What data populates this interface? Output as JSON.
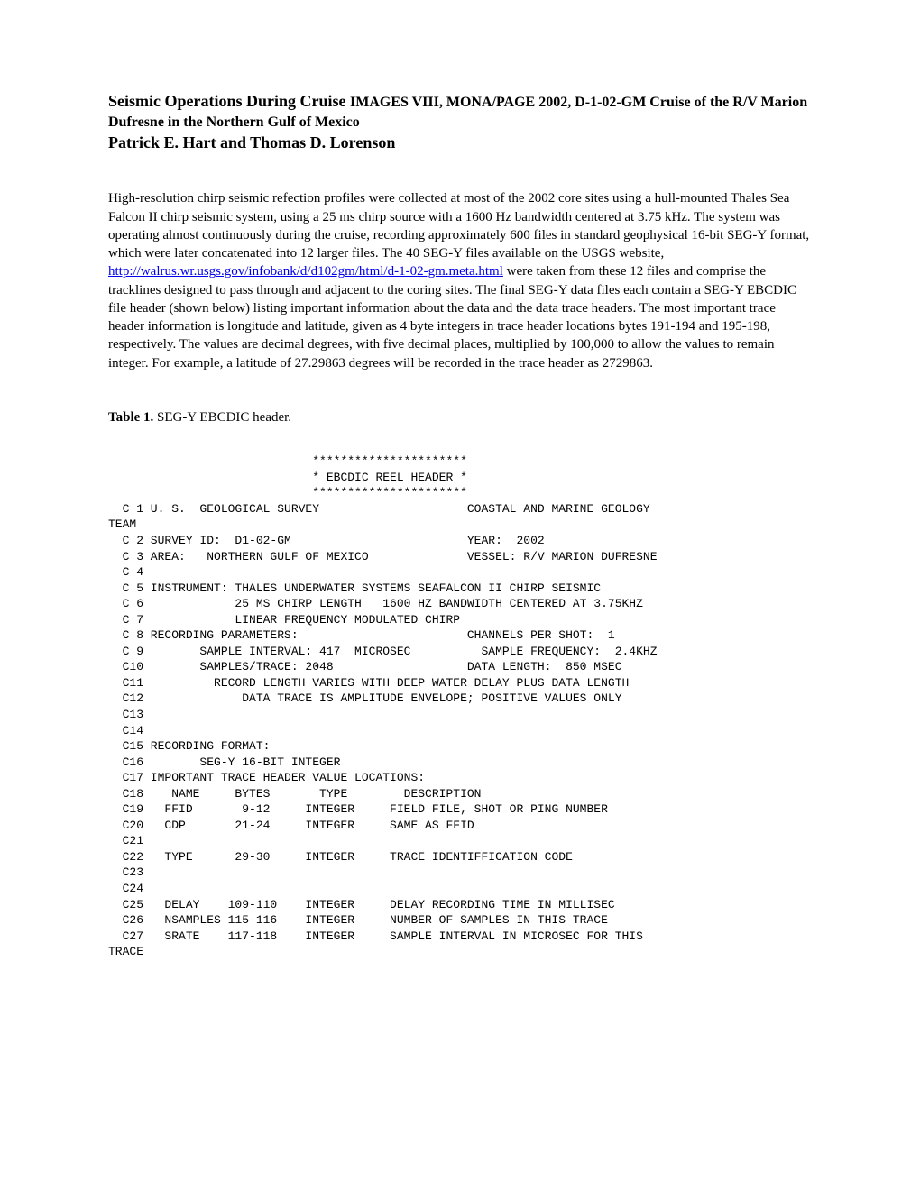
{
  "title": {
    "part1": "Seismic Operations During Cruise ",
    "part2": "IMAGES VIII, MONA/PAGE 2002, D-1-02-GM Cruise of the R/V Marion Dufresne in the Northern Gulf of Mexico",
    "authors": "Patrick E. Hart and Thomas D. Lorenson"
  },
  "body": {
    "p1a": "High-resolution chirp seismic refection profiles were collected at most of the 2002 core sites using a hull-mounted Thales Sea Falcon II chirp seismic system, using a 25 ms chirp source with a 1600 Hz bandwidth centered at 3.75 kHz.  The system was operating almost continuously during the cruise, recording approximately 600 files in standard geophysical 16-bit SEG-Y format, which were later concatenated into 12 larger files.  The 40 SEG-Y files available on the USGS website, ",
    "link": "http://walrus.wr.usgs.gov/infobank/d/d102gm/html/d-1-02-gm.meta.html",
    "p1b": " were taken from these 12 files and comprise the tracklines designed to pass through and adjacent to the coring sites.   The final SEG-Y data files each contain a SEG-Y EBCDIC file header (shown below) listing important information about the data and the data trace headers.  The most important trace header information is longitude and latitude, given as 4 byte integers in trace header locations bytes 191-194 and 195-198, respectively.  The values are decimal degrees, with five decimal places, multiplied by 100,000 to allow the values to remain integer.  For example, a latitude of 27.29863 degrees will be recorded in the trace header as 2729863."
  },
  "table": {
    "caption_bold": "Table 1.",
    "caption_rest": "  SEG-Y EBCDIC header."
  },
  "pre": "                             **********************\n                             * EBCDIC REEL HEADER *\n                             **********************\n  C 1 U. S.  GEOLOGICAL SURVEY                     COASTAL AND MARINE GEOLOGY\nTEAM\n  C 2 SURVEY_ID:  D1-02-GM                         YEAR:  2002\n  C 3 AREA:   NORTHERN GULF OF MEXICO              VESSEL: R/V MARION DUFRESNE\n  C 4\n  C 5 INSTRUMENT: THALES UNDERWATER SYSTEMS SEAFALCON II CHIRP SEISMIC\n  C 6             25 MS CHIRP LENGTH   1600 HZ BANDWIDTH CENTERED AT 3.75KHZ\n  C 7             LINEAR FREQUENCY MODULATED CHIRP\n  C 8 RECORDING PARAMETERS:                        CHANNELS PER SHOT:  1\n  C 9        SAMPLE INTERVAL: 417  MICROSEC          SAMPLE FREQUENCY:  2.4KHZ\n  C10        SAMPLES/TRACE: 2048                   DATA LENGTH:  850 MSEC\n  C11          RECORD LENGTH VARIES WITH DEEP WATER DELAY PLUS DATA LENGTH\n  C12              DATA TRACE IS AMPLITUDE ENVELOPE; POSITIVE VALUES ONLY\n  C13\n  C14\n  C15 RECORDING FORMAT:\n  C16        SEG-Y 16-BIT INTEGER\n  C17 IMPORTANT TRACE HEADER VALUE LOCATIONS:\n  C18    NAME     BYTES       TYPE        DESCRIPTION\n  C19   FFID       9-12     INTEGER     FIELD FILE, SHOT OR PING NUMBER\n  C20   CDP       21-24     INTEGER     SAME AS FFID\n  C21\n  C22   TYPE      29-30     INTEGER     TRACE IDENTIFFICATION CODE\n  C23\n  C24\n  C25   DELAY    109-110    INTEGER     DELAY RECORDING TIME IN MILLISEC\n  C26   NSAMPLES 115-116    INTEGER     NUMBER OF SAMPLES IN THIS TRACE\n  C27   SRATE    117-118    INTEGER     SAMPLE INTERVAL IN MICROSEC FOR THIS\nTRACE"
}
